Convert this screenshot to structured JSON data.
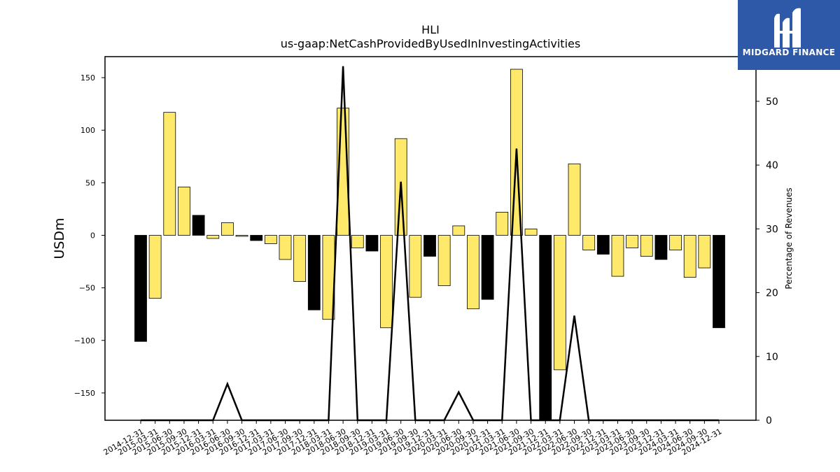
{
  "chart_data": {
    "type": "bar",
    "title": "HLI",
    "subtitle": "us-gaap:NetCashProvidedByUsedInInvestingActivities",
    "ylabel": "USDm",
    "ylabel_right": "Percentage of Revenues",
    "ylim": [
      -176,
      170
    ],
    "ylim_right": [
      0,
      57
    ],
    "yticks": [
      -150,
      -100,
      -50,
      0,
      50,
      100,
      150
    ],
    "yticks_right": [
      0,
      10,
      20,
      30,
      40,
      50
    ],
    "categories": [
      "2014-12-31",
      "2015-03-31",
      "2015-06-30",
      "2015-09-30",
      "2015-12-31",
      "2016-03-31",
      "2016-06-30",
      "2016-09-30",
      "2016-12-31",
      "2017-03-31",
      "2017-06-30",
      "2017-09-30",
      "2017-12-31",
      "2018-03-31",
      "2018-06-30",
      "2018-09-30",
      "2018-12-31",
      "2019-03-31",
      "2019-06-30",
      "2019-09-30",
      "2019-12-31",
      "2020-03-31",
      "2020-06-30",
      "2020-09-30",
      "2020-12-31",
      "2021-03-31",
      "2021-06-30",
      "2021-09-30",
      "2021-12-31",
      "2022-03-31",
      "2022-06-30",
      "2022-09-30",
      "2022-12-31",
      "2023-03-31",
      "2023-06-30",
      "2023-09-30",
      "2023-12-31",
      "2024-03-31",
      "2024-06-30",
      "2024-09-30",
      "2024-12-31"
    ],
    "series": [
      {
        "values": [
          -101,
          -60,
          117,
          46,
          19,
          -3,
          12,
          -1,
          -5,
          -8,
          -23,
          -44,
          -71,
          -80,
          121,
          -12,
          -15,
          -88,
          92,
          -59,
          -20,
          -48,
          9,
          -70,
          -61,
          22,
          158,
          6,
          -185,
          -128,
          68,
          -14,
          -18,
          -39,
          -12,
          -20,
          -23,
          -14,
          -40,
          -31,
          -88
        ],
        "colors": [
          "#000000",
          "#ffe96b",
          "#ffe96b",
          "#ffe96b",
          "#000000",
          "#ffe96b",
          "#ffe96b",
          "#ffe96b",
          "#000000",
          "#ffe96b",
          "#ffe96b",
          "#ffe96b",
          "#000000",
          "#ffe96b",
          "#ffe96b",
          "#ffe96b",
          "#000000",
          "#ffe96b",
          "#ffe96b",
          "#ffe96b",
          "#000000",
          "#ffe96b",
          "#ffe96b",
          "#ffe96b",
          "#000000",
          "#ffe96b",
          "#ffe96b",
          "#ffe96b",
          "#000000",
          "#ffe96b",
          "#ffe96b",
          "#ffe96b",
          "#000000",
          "#ffe96b",
          "#ffe96b",
          "#ffe96b",
          "#000000",
          "#ffe96b",
          "#ffe96b",
          "#ffe96b",
          "#000000"
        ]
      },
      {
        "axis": "right",
        "type": "line",
        "values": [
          0,
          0,
          0,
          0,
          0,
          0,
          5.7,
          0,
          0,
          0,
          0,
          0,
          0,
          0,
          55.5,
          0,
          0,
          0,
          37.4,
          0,
          0,
          0,
          4.4,
          0,
          0,
          0,
          42.6,
          0,
          0,
          0,
          16.4,
          0,
          0,
          0,
          0,
          0,
          0,
          0,
          0,
          0,
          0
        ],
        "color": "#000000"
      }
    ],
    "grid": false
  },
  "branding": {
    "logo_text": "MIDGARD FINANCE",
    "logo_color": "#2d59a8"
  }
}
